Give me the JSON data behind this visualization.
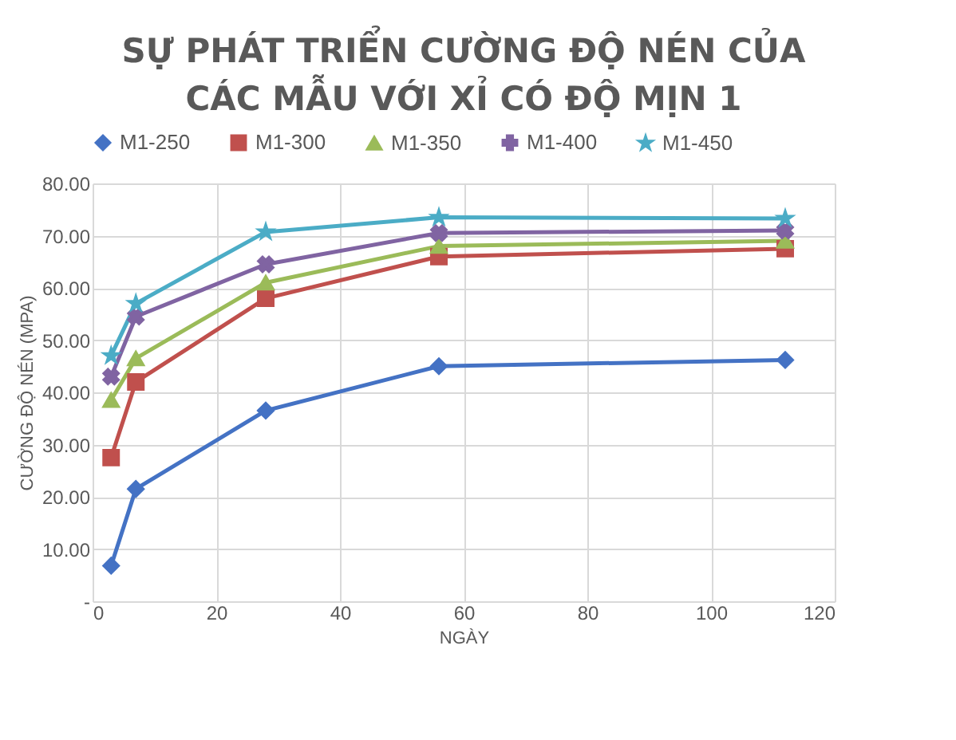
{
  "chart_data": {
    "type": "line",
    "title": [
      "SỰ PHÁT TRIỂN CƯỜNG ĐỘ NÉN CỦA",
      "CÁC MẪU VỚI XỈ CÓ ĐỘ MỊN 1"
    ],
    "xlabel": "NGÀY",
    "ylabel": "CƯỜNG ĐỘ NÉN (MPA)",
    "x": [
      3,
      7,
      28,
      56,
      112
    ],
    "series": [
      {
        "name": "M1-250",
        "color": "#4472c4",
        "marker": "diamond",
        "values": [
          6.8,
          21.5,
          36.5,
          45,
          46.2
        ]
      },
      {
        "name": "M1-300",
        "color": "#c0504d",
        "marker": "square",
        "values": [
          27.5,
          42,
          58,
          66,
          67.5
        ]
      },
      {
        "name": "M1-350",
        "color": "#9bbb59",
        "marker": "triangle",
        "values": [
          38.5,
          46.5,
          61,
          68,
          69
        ]
      },
      {
        "name": "M1-400",
        "color": "#8064a2",
        "marker": "cross",
        "values": [
          43,
          54.5,
          64.5,
          70.5,
          71
        ]
      },
      {
        "name": "M1-450",
        "color": "#4bacc6",
        "marker": "star",
        "values": [
          47,
          57,
          70.7,
          73.5,
          73.3
        ]
      }
    ],
    "xlim": [
      0,
      120
    ],
    "xticks": [
      0,
      20,
      40,
      60,
      80,
      100,
      120
    ],
    "ylim": [
      0,
      80
    ],
    "yticks": [
      {
        "value": 0,
        "label": "-"
      },
      {
        "value": 10,
        "label": "10.00"
      },
      {
        "value": 20,
        "label": "20.00"
      },
      {
        "value": 30,
        "label": "30.00"
      },
      {
        "value": 40,
        "label": "40.00"
      },
      {
        "value": 50,
        "label": "50.00"
      },
      {
        "value": 60,
        "label": "60.00"
      },
      {
        "value": 70,
        "label": "70.00"
      },
      {
        "value": 80,
        "label": "80.00"
      }
    ],
    "grid": true,
    "legend": "top",
    "line_style": "solid"
  }
}
